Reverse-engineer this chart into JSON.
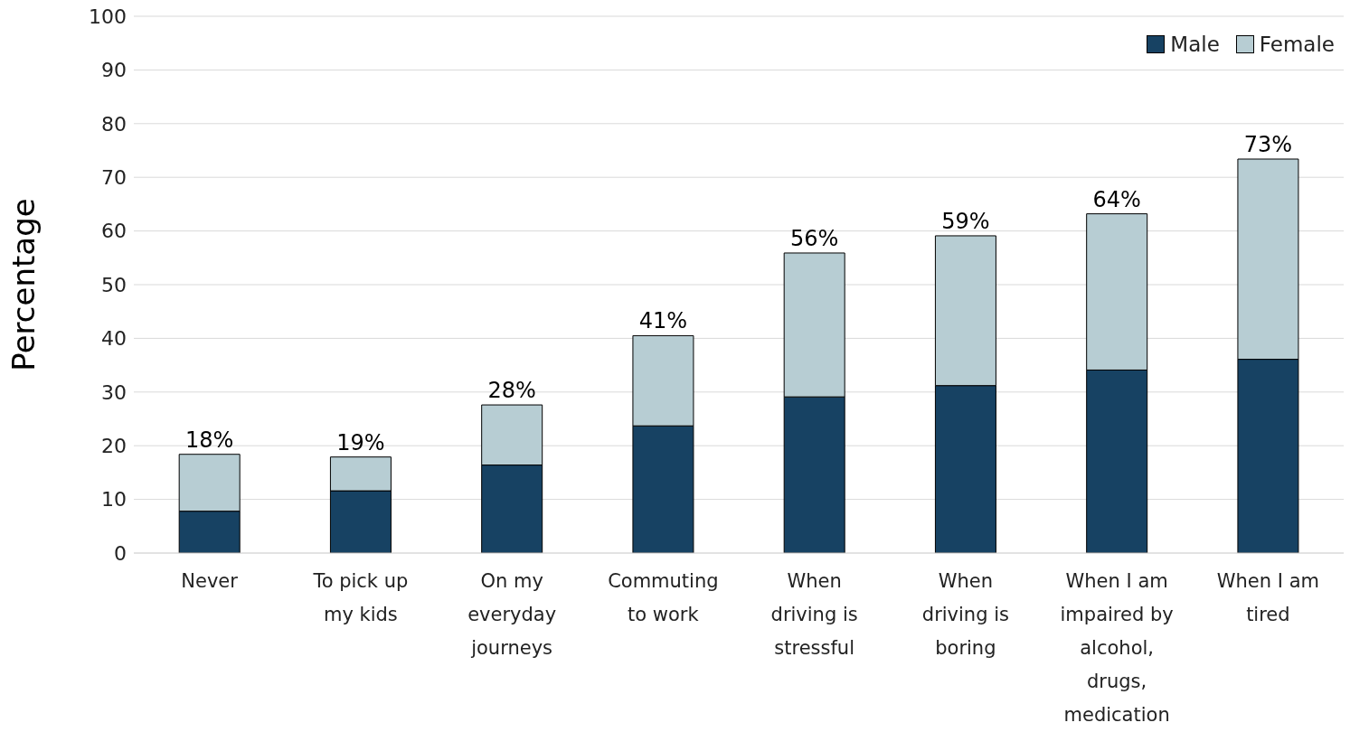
{
  "chart_data": {
    "type": "bar",
    "stacked": true,
    "ylabel": "Percentage",
    "categories": [
      "Never",
      "To pick up my kids",
      "On my everyday journeys",
      "Commuting to work",
      "When driving is stressful",
      "When driving is boring",
      "When I am impaired by alcohol, drugs, medication",
      "When I am tired"
    ],
    "series": [
      {
        "name": "Male",
        "color": "#174263",
        "values": [
          7.8,
          11.6,
          16.4,
          23.7,
          29.1,
          31.2,
          34.1,
          36.1
        ]
      },
      {
        "name": "Female",
        "color": "#b7cdd3",
        "values": [
          10.6,
          6.3,
          11.2,
          16.8,
          26.8,
          27.9,
          29.1,
          37.3
        ]
      }
    ],
    "totals": [
      "18%",
      "19%",
      "28%",
      "41%",
      "56%",
      "59%",
      "64%",
      "73%"
    ],
    "ylim": [
      0,
      100
    ],
    "yticks": [
      0,
      10,
      20,
      30,
      40,
      50,
      60,
      70,
      80,
      90,
      100
    ],
    "grid": "y",
    "legend": "top right"
  }
}
